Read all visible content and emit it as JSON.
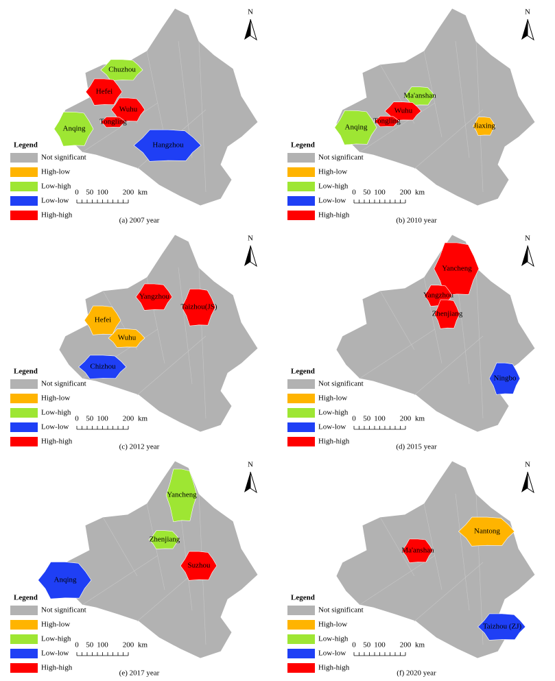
{
  "legend": {
    "title": "Legend",
    "items": [
      {
        "label": "Not significant",
        "color": "#b2b2b2"
      },
      {
        "label": "High-low",
        "color": "#ffb400"
      },
      {
        "label": "Low-high",
        "color": "#9ee633"
      },
      {
        "label": "Low-low",
        "color": "#1f3ff5"
      },
      {
        "label": "High-high",
        "color": "#ff0000"
      }
    ]
  },
  "north": "N",
  "scale": {
    "ticks": [
      0,
      50,
      100,
      200
    ],
    "unit": "km"
  },
  "panels": [
    {
      "caption": "(a) 2007 year",
      "regions": [
        {
          "name": "Chuzhou",
          "class": "Low-high"
        },
        {
          "name": "Hefei",
          "class": "High-high"
        },
        {
          "name": "Wuhu",
          "class": "High-high"
        },
        {
          "name": "Tongling",
          "class": "High-high"
        },
        {
          "name": "Anqing",
          "class": "Low-high"
        },
        {
          "name": "Hangzhou",
          "class": "Low-low"
        }
      ]
    },
    {
      "caption": "(b) 2010 year",
      "regions": [
        {
          "name": "Ma'anshan",
          "class": "Low-high"
        },
        {
          "name": "Wuhu",
          "class": "High-high"
        },
        {
          "name": "Tongling",
          "class": "High-high"
        },
        {
          "name": "Anqing",
          "class": "Low-high"
        },
        {
          "name": "Jiaxing",
          "class": "High-low"
        }
      ]
    },
    {
      "caption": "(c) 2012 year",
      "regions": [
        {
          "name": "Yangzhou",
          "class": "High-high"
        },
        {
          "name": "Taizhou(JS)",
          "class": "High-high"
        },
        {
          "name": "Hefei",
          "class": "High-low"
        },
        {
          "name": "Wuhu",
          "class": "High-low"
        },
        {
          "name": "Chizhou",
          "class": "Low-low"
        }
      ]
    },
    {
      "caption": "(d) 2015 year",
      "regions": [
        {
          "name": "Yancheng",
          "class": "High-high"
        },
        {
          "name": "Yangzhou",
          "class": "High-high"
        },
        {
          "name": "Zhenjiang",
          "class": "High-high"
        },
        {
          "name": "Ningbo",
          "class": "Low-low"
        }
      ]
    },
    {
      "caption": "(e) 2017 year",
      "regions": [
        {
          "name": "Yancheng",
          "class": "Low-high"
        },
        {
          "name": "Zhenjiang",
          "class": "Low-high"
        },
        {
          "name": "Suzhou",
          "class": "High-high"
        },
        {
          "name": "Anqing",
          "class": "Low-low"
        }
      ]
    },
    {
      "caption": "(f) 2020 year",
      "regions": [
        {
          "name": "Nantong",
          "class": "High-low"
        },
        {
          "name": "Ma'anshan",
          "class": "High-high"
        },
        {
          "name": "Taizhou (ZJ)",
          "class": "Low-low"
        }
      ]
    }
  ]
}
